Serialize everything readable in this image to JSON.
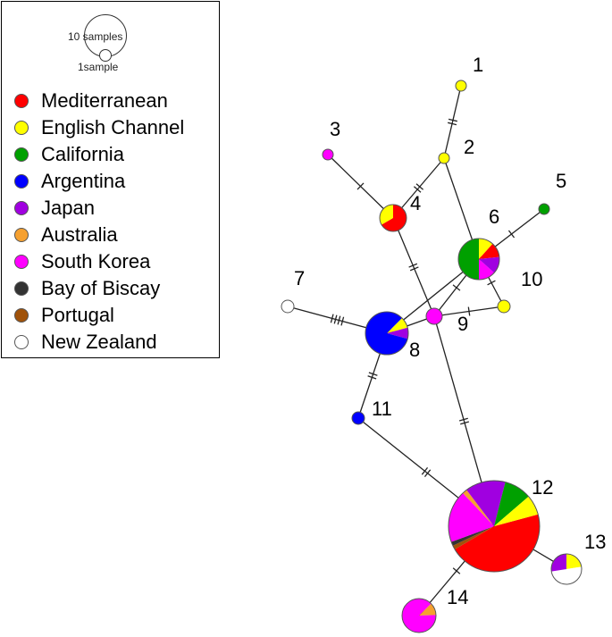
{
  "legend": {
    "scale": {
      "large_label": "10 samples",
      "small_label": "1sample"
    },
    "regions": [
      {
        "label": "Mediterranean",
        "color": "#ff0000"
      },
      {
        "label": "English Channel",
        "color": "#ffff00"
      },
      {
        "label": "California",
        "color": "#00a000"
      },
      {
        "label": "Argentina",
        "color": "#0000ff"
      },
      {
        "label": "Japan",
        "color": "#a000e0"
      },
      {
        "label": "Australia",
        "color": "#f5a030"
      },
      {
        "label": "South Korea",
        "color": "#ff00ff"
      },
      {
        "label": "Bay of Biscay",
        "color": "#333333"
      },
      {
        "label": "Portugal",
        "color": "#a0520a"
      },
      {
        "label": "New Zealand",
        "color": "#ffffff"
      }
    ]
  },
  "haplotypes": [
    {
      "id": "1",
      "label": "1",
      "samples": 1,
      "composition": {
        "English Channel": 1
      }
    },
    {
      "id": "2",
      "label": "2",
      "samples": 1,
      "composition": {
        "English Channel": 1
      }
    },
    {
      "id": "3",
      "label": "3",
      "samples": 1,
      "composition": {
        "South Korea": 1
      }
    },
    {
      "id": "4",
      "label": "4",
      "samples": 3,
      "composition": {
        "Mediterranean": 2,
        "English Channel": 1
      }
    },
    {
      "id": "5",
      "label": "5",
      "samples": 1,
      "composition": {
        "California": 1
      }
    },
    {
      "id": "6",
      "label": "6",
      "samples": 6,
      "composition": {
        "English Channel": 0.7,
        "Mediterranean": 0.7,
        "Japan": 0.8,
        "South Korea": 0.8,
        "California": 3
      }
    },
    {
      "id": "7",
      "label": "7",
      "samples": 1,
      "composition": {
        "New Zealand": 1
      }
    },
    {
      "id": "8",
      "label": "8",
      "samples": 6,
      "composition": {
        "English Channel": 0.5,
        "Japan": 0.5,
        "Argentina": 5
      }
    },
    {
      "id": "9",
      "label": "9",
      "samples": 1.5,
      "composition": {
        "South Korea": 1.5
      }
    },
    {
      "id": "10",
      "label": "10",
      "samples": 1,
      "composition": {
        "English Channel": 1
      }
    },
    {
      "id": "11",
      "label": "11",
      "samples": 1,
      "composition": {
        "Argentina": 1
      }
    },
    {
      "id": "12",
      "label": "12",
      "samples": 35,
      "composition": {
        "Mediterranean": 16,
        "Portugal": 0.5,
        "Bay of Biscay": 0.5,
        "South Korea": 6.5,
        "Australia": 0.6,
        "Japan": 5,
        "California": 3.4,
        "English Channel": 2.5
      }
    },
    {
      "id": "13",
      "label": "13",
      "samples": 4,
      "composition": {
        "English Channel": 0.9,
        "New Zealand": 2,
        "Japan": 1.1
      }
    },
    {
      "id": "14",
      "label": "14",
      "samples": 5,
      "composition": {
        "Australia": 0.6,
        "South Korea": 4.4
      }
    }
  ],
  "links": [
    {
      "from": "1",
      "to": "2",
      "mutations": 2
    },
    {
      "from": "2",
      "to": "4",
      "mutations": 2
    },
    {
      "from": "2",
      "to": "6",
      "mutations": 0
    },
    {
      "from": "3",
      "to": "4",
      "mutations": 1
    },
    {
      "from": "4",
      "to": "9",
      "mutations": 2
    },
    {
      "from": "5",
      "to": "6",
      "mutations": 1
    },
    {
      "from": "6",
      "to": "8",
      "mutations": 0
    },
    {
      "from": "6",
      "to": "9",
      "mutations": 1
    },
    {
      "from": "6",
      "to": "10",
      "mutations": 1
    },
    {
      "from": "7",
      "to": "8",
      "mutations": 4
    },
    {
      "from": "8",
      "to": "9",
      "mutations": 0
    },
    {
      "from": "9",
      "to": "10",
      "mutations": 1
    },
    {
      "from": "9",
      "to": "12",
      "mutations": 2
    },
    {
      "from": "8",
      "to": "11",
      "mutations": 2
    },
    {
      "from": "11",
      "to": "12",
      "mutations": 2
    },
    {
      "from": "12",
      "to": "13",
      "mutations": 0
    },
    {
      "from": "12",
      "to": "14",
      "mutations": 1
    }
  ]
}
